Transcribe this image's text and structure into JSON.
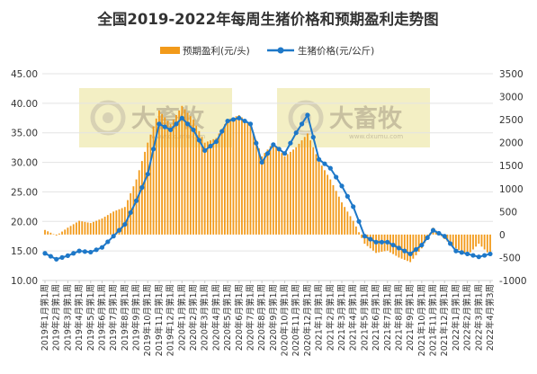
{
  "chart_data": {
    "type": "bar+line",
    "title": "全国2019-2022年每周生猪价格和预期盈利走势图",
    "legend": [
      {
        "name": "预期盈利(元/头)",
        "color": "#f29a1a",
        "marker": "bar"
      },
      {
        "name": "生猪价格(元/公斤)",
        "color": "#1e78c8",
        "marker": "line-dot"
      }
    ],
    "watermark": {
      "text": "大畜牧",
      "url": "www.dxumu.com"
    },
    "left_axis": {
      "min": 10,
      "max": 45,
      "step": 5,
      "ticks": [
        "10.00",
        "15.00",
        "20.00",
        "25.00",
        "30.00",
        "35.00",
        "40.00",
        "45.00"
      ]
    },
    "right_axis": {
      "min": -1000,
      "max": 3500,
      "step": 500,
      "ticks": [
        "-1000",
        "-500",
        "0",
        "500",
        "1000",
        "1500",
        "2000",
        "2500",
        "3000",
        "3500"
      ]
    },
    "x_tick_labels": [
      "2019年1月第1周",
      "2019年2月第1周",
      "2019年3月第1周",
      "2019年4月第1周",
      "2019年5月第1周",
      "2019年6月第1周",
      "2019年7月第1周",
      "2019年8月第1周",
      "2019年9月第1周",
      "2019年10月第1周",
      "2019年11月第1周",
      "2019年12月第1周",
      "2020年1月第1周",
      "2020年2月第1周",
      "2020年3月第1周",
      "2020年4月第1周",
      "2020年5月第1周",
      "2020年6月第1周",
      "2020年7月第1周",
      "2020年8月第1周",
      "2020年9月第1周",
      "2020年10月第1周",
      "2020年11月第1周",
      "2020年12月第1周",
      "2021年1月第1周",
      "2021年2月第1周",
      "2021年3月第1周",
      "2021年4月第1周",
      "2021年5月第1周",
      "2021年6月第1周",
      "2021年7月第1周",
      "2021年8月第1周",
      "2021年9月第1周",
      "2021年10月第1周",
      "2021年11月第1周",
      "2021年12月第1周",
      "2022年1月第1周",
      "2022年2月第1周",
      "2022年3月第1周",
      "2022年4月第3周"
    ],
    "series": [
      {
        "name": "生猪价格(元/公斤)",
        "axis": "left",
        "type": "line",
        "x": [
          0,
          1,
          2,
          3,
          4,
          5,
          6,
          7,
          8,
          9,
          10,
          11,
          12,
          13,
          14,
          15,
          16,
          17,
          18,
          19,
          20,
          21,
          22,
          23,
          24,
          25,
          26,
          27,
          28,
          29,
          30,
          31,
          32,
          33,
          34,
          35,
          36,
          37,
          38,
          39
        ],
        "values": [
          14.6,
          13.6,
          14.2,
          15.0,
          14.8,
          15.6,
          17.5,
          19.5,
          23.5,
          28.0,
          36.5,
          35.5,
          37.5,
          35.5,
          32.0,
          33.5,
          37.0,
          37.5,
          36.5,
          30.0,
          33.0,
          31.5,
          35.0,
          38.0,
          30.5,
          29.0,
          26.0,
          22.5,
          17.5,
          16.5,
          16.5,
          15.5,
          14.5,
          16.0,
          18.5,
          17.5,
          15.0,
          14.5,
          14.0,
          14.5
        ]
      },
      {
        "name": "预期盈利(元/头)",
        "axis": "right",
        "type": "bar",
        "x": [
          0,
          1,
          2,
          3,
          4,
          5,
          6,
          7,
          8,
          9,
          10,
          11,
          12,
          13,
          14,
          15,
          16,
          17,
          18,
          19,
          20,
          21,
          22,
          23,
          24,
          25,
          26,
          27,
          28,
          29,
          30,
          31,
          32,
          33,
          34,
          35,
          36,
          37,
          38,
          39
        ],
        "values": [
          100,
          -20,
          150,
          300,
          250,
          350,
          500,
          600,
          1200,
          2000,
          2700,
          2400,
          2800,
          2500,
          2000,
          2100,
          2500,
          2600,
          2400,
          1700,
          2000,
          1700,
          1900,
          2200,
          1600,
          1200,
          700,
          300,
          -200,
          -400,
          -350,
          -500,
          -600,
          -300,
          150,
          -100,
          -300,
          -450,
          -200,
          -450
        ]
      }
    ]
  }
}
